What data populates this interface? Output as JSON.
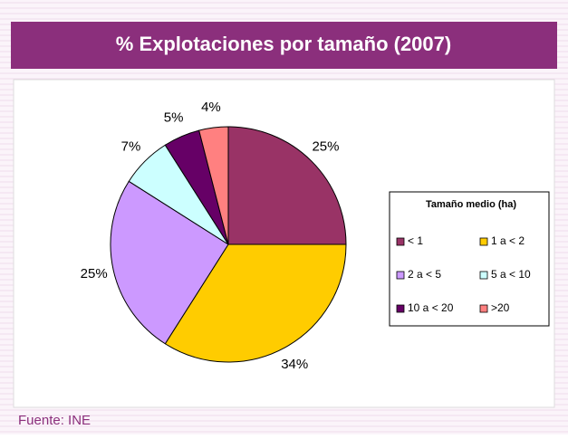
{
  "chart_data": {
    "type": "pie",
    "title": "% Explotaciones por tamaño (2007)",
    "legend_title": "Tamaño medio (ha)",
    "categories": [
      "< 1",
      "1  a < 2",
      "2 a < 5",
      "5 a <  10",
      "10 a < 20",
      ">20"
    ],
    "values": [
      25,
      34,
      25,
      7,
      5,
      4
    ],
    "value_labels": [
      "25%",
      "34%",
      "25%",
      "7%",
      "5%",
      "4%"
    ],
    "colors": [
      "#993366",
      "#ffcc00",
      "#cc99ff",
      "#ccffff",
      "#660066",
      "#ff8080"
    ],
    "source": "Fuente: INE"
  }
}
